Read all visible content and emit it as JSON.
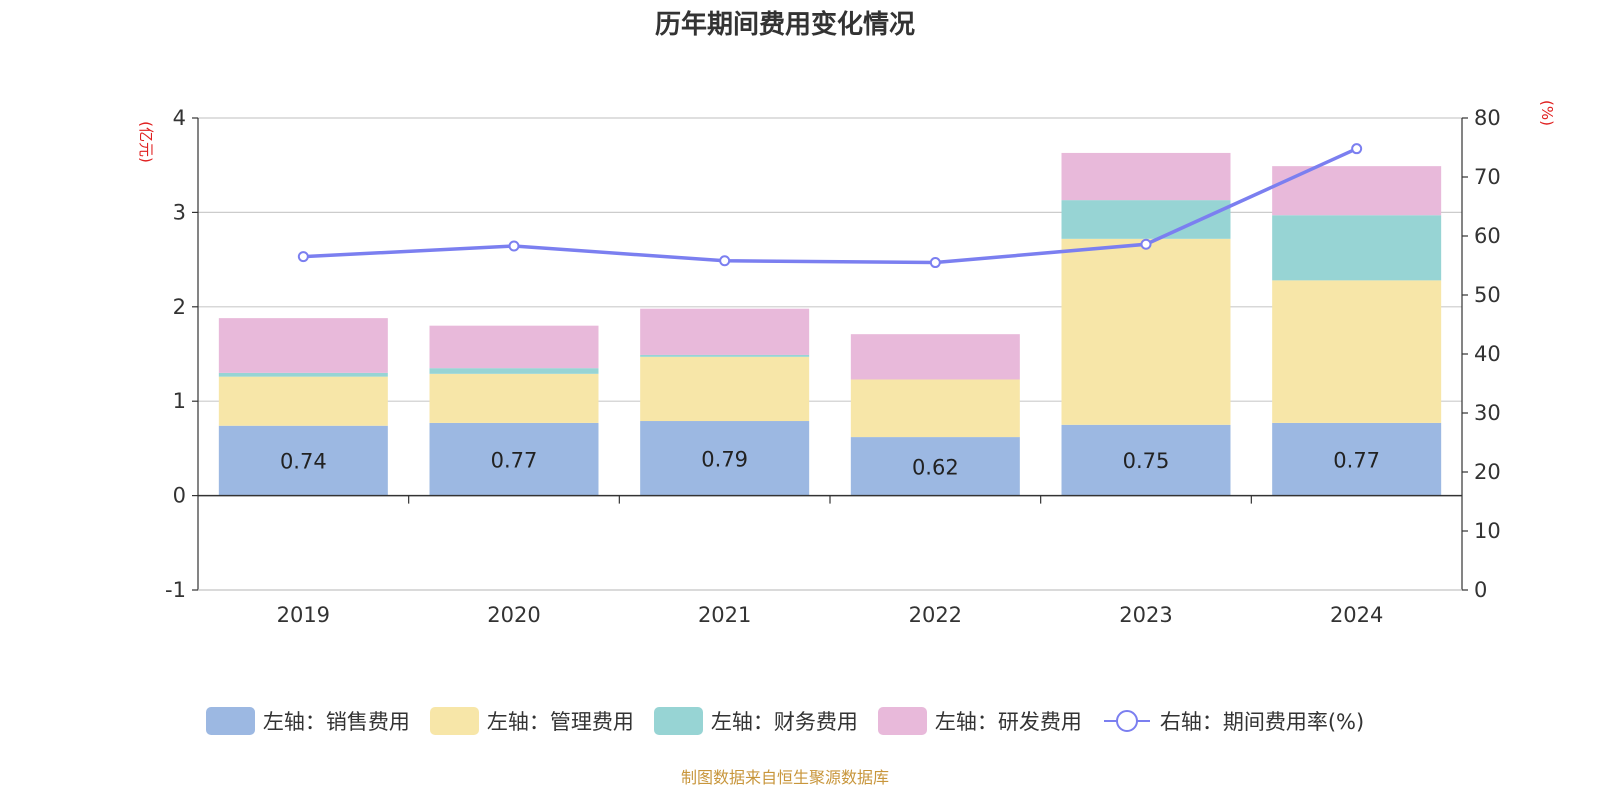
{
  "chart_data": {
    "type": "bar",
    "title": "历年期间费用变化情况",
    "categories": [
      "2019",
      "2020",
      "2021",
      "2022",
      "2023",
      "2024"
    ],
    "series": [
      {
        "name": "左轴：销售费用",
        "axis": "left",
        "kind": "bar",
        "color": "#9cb8e2",
        "values": [
          0.74,
          0.77,
          0.79,
          0.62,
          0.75,
          0.77
        ],
        "labels": [
          "0.74",
          "0.77",
          "0.79",
          "0.62",
          "0.75",
          "0.77"
        ]
      },
      {
        "name": "左轴：管理费用",
        "axis": "left",
        "kind": "bar",
        "color": "#f7e6a8",
        "values": [
          0.52,
          0.52,
          0.68,
          0.61,
          1.97,
          1.51
        ]
      },
      {
        "name": "左轴：财务费用",
        "axis": "left",
        "kind": "bar",
        "color": "#97d4d4",
        "values": [
          0.04,
          0.06,
          0.02,
          0.0,
          0.41,
          0.69
        ]
      },
      {
        "name": "左轴：研发费用",
        "axis": "left",
        "kind": "bar",
        "color": "#e8b9da",
        "values": [
          0.58,
          0.45,
          0.49,
          0.48,
          0.5,
          0.52
        ]
      },
      {
        "name": "右轴：期间费用率(%)",
        "axis": "right",
        "kind": "line",
        "color": "#7b7ff0",
        "values": [
          56.5,
          58.3,
          55.8,
          55.5,
          58.6,
          74.8
        ]
      }
    ],
    "y_left": {
      "unit": "(亿元)",
      "range": [
        -1,
        4
      ],
      "ticks": [
        "-1",
        "0",
        "1",
        "2",
        "3",
        "4"
      ]
    },
    "y_right": {
      "unit": "(%)",
      "range": [
        0,
        80
      ],
      "ticks": [
        "0",
        "10",
        "20",
        "30",
        "40",
        "50",
        "60",
        "70",
        "80"
      ]
    },
    "legend_position": "bottom",
    "gridlines": true,
    "unit_color": "#e02020"
  },
  "footer": {
    "source": "制图数据来自恒生聚源数据库"
  }
}
